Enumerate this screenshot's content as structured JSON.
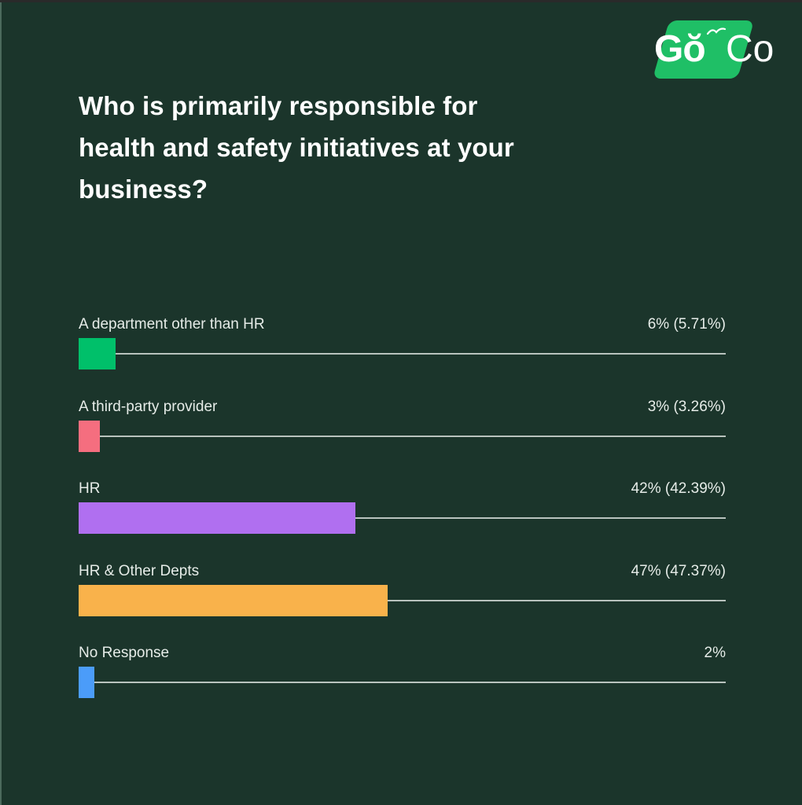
{
  "logo": {
    "go": "Gŏ",
    "co": "Co",
    "brand_color": "#1fbf66"
  },
  "title": "Who is primarily responsible for health and safety initiatives at your business?",
  "title_lines": [
    "Who is primarily responsible for",
    "health and safety initiatives at your",
    "business?"
  ],
  "rows": [
    {
      "label": "A department other than HR",
      "value": "6% (5.71%)",
      "pct": 5.71,
      "color": "#00c06a"
    },
    {
      "label": "A third-party provider",
      "value": "3% (3.26%)",
      "pct": 3.26,
      "color": "#f56e7f"
    },
    {
      "label": "HR",
      "value": "42% (42.39%)",
      "pct": 42.39,
      "color": "#b06ff0"
    },
    {
      "label": "HR & Other Depts",
      "value": "47% (47.37%)",
      "pct": 47.37,
      "color": "#f9b24b"
    },
    {
      "label": "No Response",
      "value": "2%",
      "pct": 2,
      "color": "#4b9cf9"
    }
  ],
  "chart_data": {
    "type": "bar",
    "orientation": "horizontal",
    "title": "Who is primarily responsible for health and safety initiatives at your business?",
    "categories": [
      "A department other than HR",
      "A third-party provider",
      "HR",
      "HR & Other Depts",
      "No Response"
    ],
    "values": [
      5.71,
      3.26,
      42.39,
      47.37,
      2
    ],
    "value_labels": [
      "6% (5.71%)",
      "3% (3.26%)",
      "42% (42.39%)",
      "47% (47.37%)",
      "2%"
    ],
    "colors": [
      "#00c06a",
      "#f56e7f",
      "#b06ff0",
      "#f9b24b",
      "#4b9cf9"
    ],
    "xlabel": "",
    "ylabel": "",
    "xlim": [
      0,
      100
    ],
    "grid": false,
    "legend": "none"
  }
}
